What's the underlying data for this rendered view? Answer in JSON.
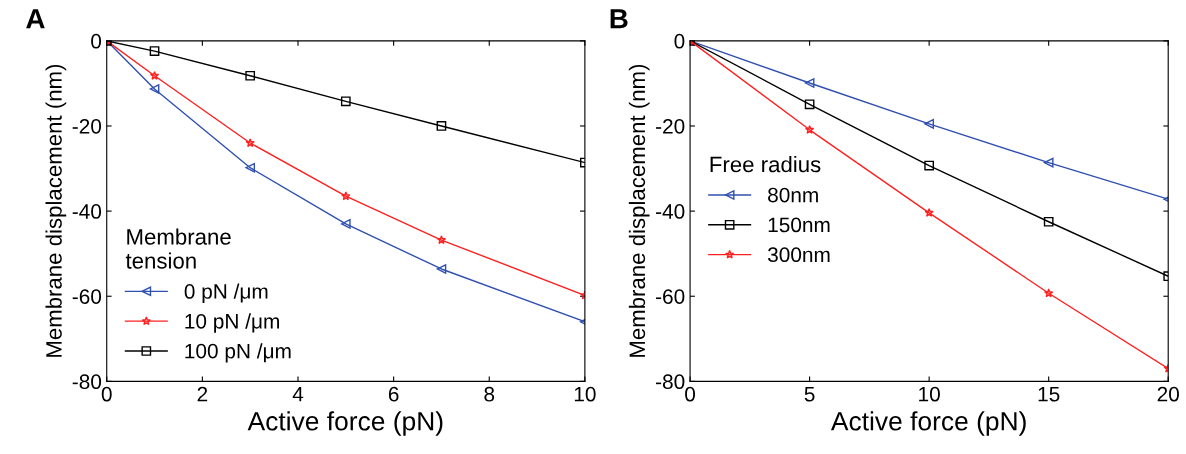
{
  "chart_data": [
    {
      "type": "line",
      "annotations": [
        "A"
      ],
      "xlabel": "Active force (pN)",
      "ylabel": "Membrane displacement (nm)",
      "legend_title": "Membrane\ntension",
      "legend": "bottom left",
      "grid": false,
      "xlim": [
        0,
        10
      ],
      "xticks": [
        0,
        2,
        4,
        6,
        8,
        10
      ],
      "ylim": [
        -80,
        0
      ],
      "yticks": [
        -80,
        -60,
        -40,
        -20,
        0
      ],
      "x": [
        0,
        1,
        3,
        5,
        7,
        10
      ],
      "series": [
        {
          "name": "0 pN /μm",
          "color": "#3050b0",
          "marker": "triangle",
          "values": [
            0,
            -11.3,
            -29.8,
            -43,
            -53.6,
            -66
          ]
        },
        {
          "name": "10 pN /μm",
          "color": "#ff2020",
          "marker": "star",
          "values": [
            0,
            -8.2,
            -24,
            -36.5,
            -46.8,
            -59.8
          ]
        },
        {
          "name": "100 pN /μm",
          "color": "#000000",
          "marker": "square",
          "values": [
            0,
            -2.4,
            -8.2,
            -14.2,
            -20,
            -28.6
          ]
        }
      ]
    },
    {
      "type": "line",
      "annotations": [
        "B"
      ],
      "xlabel": "Active force (pN)",
      "ylabel": "Membrane displacement (nm)",
      "legend_title": "Free radius",
      "legend": "left",
      "grid": false,
      "xlim": [
        0,
        20
      ],
      "xticks": [
        0,
        5,
        10,
        15,
        20
      ],
      "ylim": [
        -80,
        0
      ],
      "yticks": [
        -80,
        -60,
        -40,
        -20,
        0
      ],
      "x": [
        0,
        5,
        10,
        15,
        20
      ],
      "series": [
        {
          "name": "80nm",
          "color": "#3050b0",
          "marker": "triangle",
          "values": [
            0,
            -9.9,
            -19.5,
            -28.6,
            -37.2
          ]
        },
        {
          "name": "150nm",
          "color": "#000000",
          "marker": "square",
          "values": [
            0,
            -14.9,
            -29.3,
            -42.5,
            -55.3
          ]
        },
        {
          "name": "300nm",
          "color": "#ff2020",
          "marker": "star",
          "values": [
            0,
            -20.9,
            -40.4,
            -59.3,
            -77
          ]
        }
      ]
    }
  ]
}
